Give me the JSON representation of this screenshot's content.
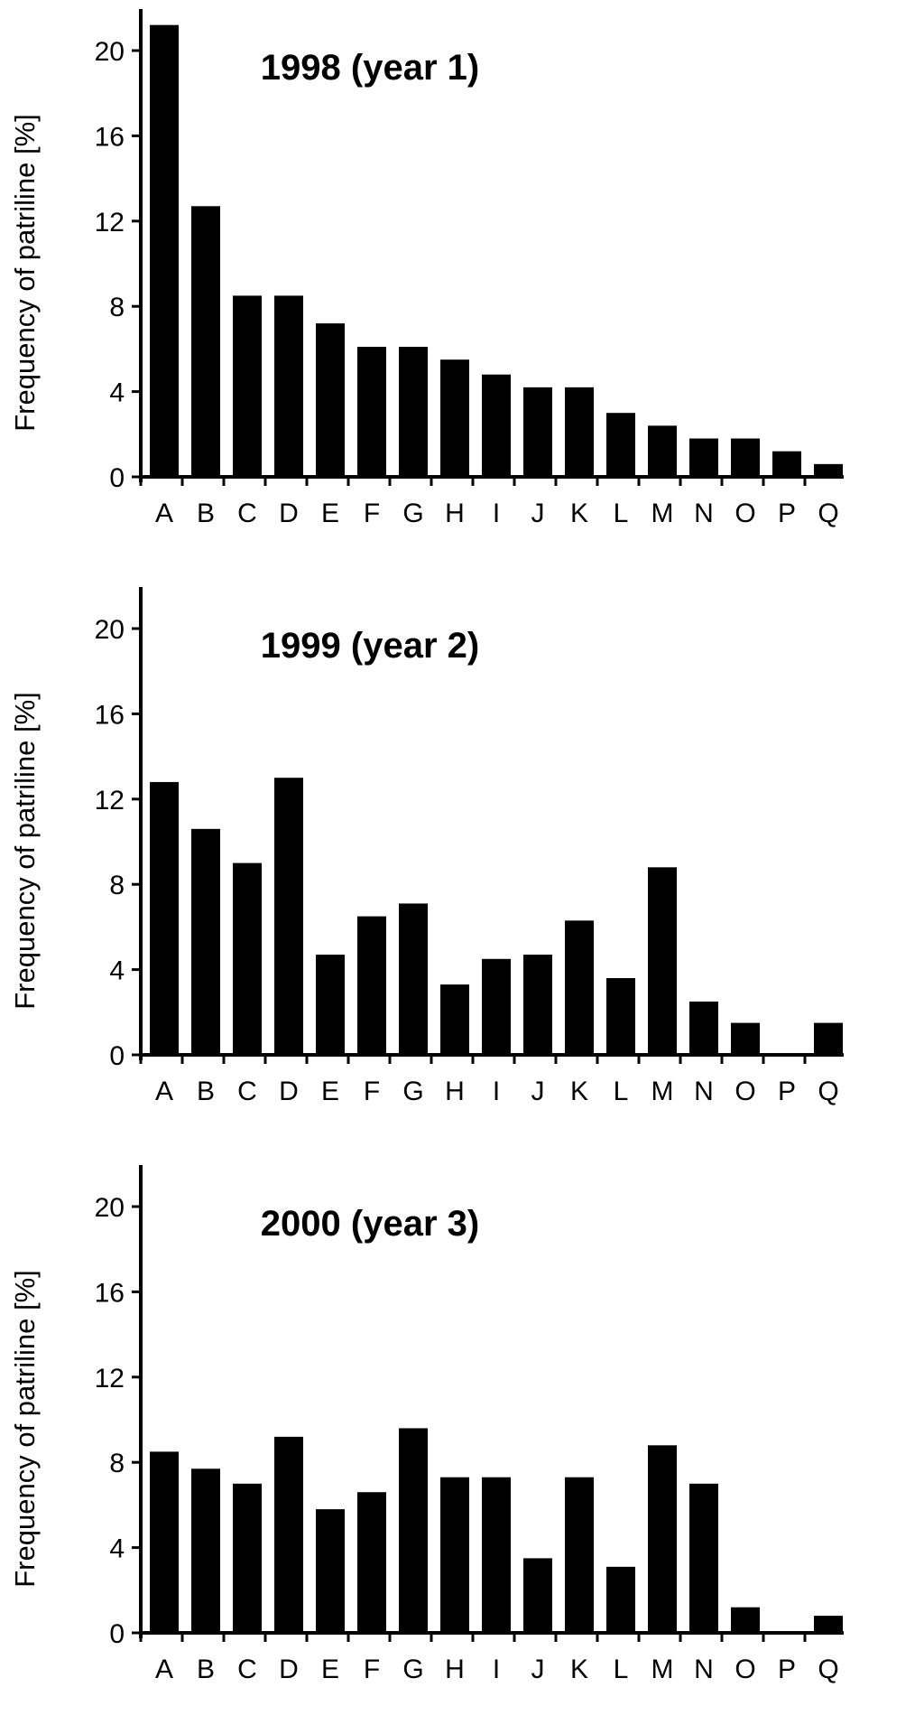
{
  "chart_data": [
    {
      "type": "bar",
      "title": "1998 (year 1)",
      "ylabel": "Frequency of patriline [%]",
      "xlabel": "",
      "ylim": [
        0,
        22
      ],
      "yticks": [
        0,
        4,
        8,
        12,
        16,
        20
      ],
      "grid": false,
      "legend": "none",
      "bar_color": "#000000",
      "categories": [
        "A",
        "B",
        "C",
        "D",
        "E",
        "F",
        "G",
        "H",
        "I",
        "J",
        "K",
        "L",
        "M",
        "N",
        "O",
        "P",
        "Q"
      ],
      "values": [
        21.2,
        12.7,
        8.5,
        8.5,
        7.2,
        6.1,
        6.1,
        5.5,
        4.8,
        4.2,
        4.2,
        3.0,
        2.4,
        1.8,
        1.8,
        1.2,
        0.6
      ]
    },
    {
      "type": "bar",
      "title": "1999 (year 2)",
      "ylabel": "Frequency of patriline [%]",
      "xlabel": "",
      "ylim": [
        0,
        22
      ],
      "yticks": [
        0,
        4,
        8,
        12,
        16,
        20
      ],
      "grid": false,
      "legend": "none",
      "bar_color": "#000000",
      "categories": [
        "A",
        "B",
        "C",
        "D",
        "E",
        "F",
        "G",
        "H",
        "I",
        "J",
        "K",
        "L",
        "M",
        "N",
        "O",
        "P",
        "Q"
      ],
      "values": [
        12.8,
        10.6,
        9.0,
        13.0,
        4.7,
        6.5,
        7.1,
        3.3,
        4.5,
        4.7,
        6.3,
        3.6,
        8.8,
        2.5,
        1.5,
        0,
        1.5
      ]
    },
    {
      "type": "bar",
      "title": "2000 (year 3)",
      "ylabel": "Frequency of patriline [%]",
      "xlabel": "",
      "ylim": [
        0,
        22
      ],
      "yticks": [
        0,
        4,
        8,
        12,
        16,
        20
      ],
      "grid": false,
      "legend": "none",
      "bar_color": "#000000",
      "categories": [
        "A",
        "B",
        "C",
        "D",
        "E",
        "F",
        "G",
        "H",
        "I",
        "J",
        "K",
        "L",
        "M",
        "N",
        "O",
        "P",
        "Q"
      ],
      "values": [
        8.5,
        7.7,
        7.0,
        9.2,
        5.8,
        6.6,
        9.6,
        7.3,
        7.3,
        3.5,
        7.3,
        3.1,
        8.8,
        7.0,
        1.2,
        0,
        0.8
      ]
    }
  ]
}
